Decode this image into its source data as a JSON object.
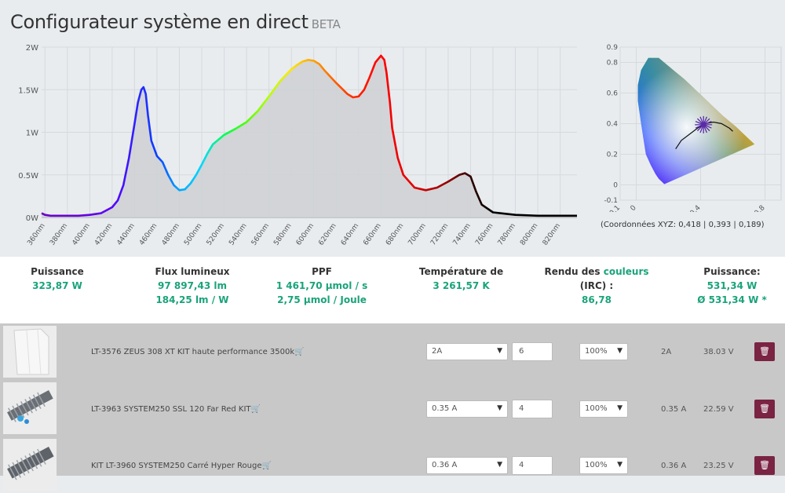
{
  "header": {
    "title": "Configurateur système en direct",
    "badge": "BETA"
  },
  "chart_data": [
    {
      "type": "area",
      "xlabel": "",
      "ylabel": "",
      "x_ticks": [
        "360nm",
        "380nm",
        "400nm",
        "420nm",
        "440nm",
        "460nm",
        "480nm",
        "500nm",
        "520nm",
        "540nm",
        "560nm",
        "580nm",
        "600nm",
        "620nm",
        "640nm",
        "660nm",
        "680nm",
        "700nm",
        "720nm",
        "740nm",
        "760nm",
        "780nm",
        "800nm",
        "820nm"
      ],
      "y_ticks": [
        "0W",
        "0.5W",
        "1W",
        "1.5W",
        "2W"
      ],
      "xlim": [
        357,
        835
      ],
      "ylim": [
        0,
        2
      ],
      "grid": true,
      "series": [
        {
          "x": [
            357,
            360,
            365,
            370,
            380,
            390,
            400,
            410,
            420,
            425,
            430,
            435,
            440,
            443,
            446,
            448,
            450,
            452,
            455,
            460,
            465,
            470,
            475,
            480,
            485,
            490,
            495,
            500,
            505,
            510,
            520,
            530,
            540,
            550,
            560,
            570,
            580,
            585,
            590,
            595,
            600,
            605,
            610,
            620,
            630,
            635,
            640,
            645,
            650,
            655,
            660,
            663,
            665,
            668,
            670,
            675,
            680,
            690,
            700,
            710,
            720,
            730,
            735,
            740,
            745,
            750,
            760,
            780,
            800,
            820,
            835
          ],
          "y": [
            0.05,
            0.03,
            0.02,
            0.02,
            0.02,
            0.02,
            0.03,
            0.05,
            0.12,
            0.2,
            0.38,
            0.7,
            1.1,
            1.35,
            1.5,
            1.53,
            1.45,
            1.2,
            0.9,
            0.72,
            0.65,
            0.5,
            0.38,
            0.32,
            0.33,
            0.4,
            0.5,
            0.62,
            0.75,
            0.86,
            0.97,
            1.04,
            1.12,
            1.25,
            1.42,
            1.6,
            1.74,
            1.79,
            1.83,
            1.85,
            1.84,
            1.8,
            1.72,
            1.58,
            1.45,
            1.41,
            1.42,
            1.5,
            1.65,
            1.82,
            1.9,
            1.85,
            1.7,
            1.35,
            1.05,
            0.7,
            0.5,
            0.35,
            0.32,
            0.35,
            0.42,
            0.5,
            0.52,
            0.48,
            0.3,
            0.15,
            0.06,
            0.03,
            0.02,
            0.02,
            0.02
          ]
        }
      ]
    },
    {
      "type": "scatter",
      "x_ticks": [
        "-0.1",
        "0",
        "0.4",
        "0.8"
      ],
      "y_ticks": [
        "0.9",
        "0.8",
        "0.6",
        "0.4",
        "0.2",
        "0",
        "-0.1"
      ],
      "xlim": [
        -0.1,
        0.9
      ],
      "ylim": [
        -0.1,
        0.9
      ],
      "marker": {
        "x": 0.418,
        "y": 0.393
      }
    }
  ],
  "cie_caption": "(Coordonnées XYZ: 0,418 | 0,393 | 0,189)",
  "stats": [
    {
      "label": "Puissance",
      "values": [
        "323,87 W"
      ]
    },
    {
      "label": "Flux lumineux",
      "values": [
        "97 897,43 lm",
        "184,25 lm / W"
      ]
    },
    {
      "label": "PPF",
      "values": [
        "1 461,70 µmol / s",
        "2,75 µmol / Joule"
      ]
    },
    {
      "label": "Température de",
      "values": [
        "3 261,57 K"
      ]
    },
    {
      "label_a": "Rendu des ",
      "label_b": "couleurs",
      "label_c": "(IRC) :",
      "values": [
        "86,78"
      ]
    },
    {
      "label": "Puissance:",
      "values": [
        "531,34 W",
        "Ø 531,34 W *"
      ]
    }
  ],
  "products": [
    {
      "name": "LT-3576 ZEUS 308 XT KIT haute performance 3500k",
      "current_select": "2A",
      "quantity": "6",
      "dim_select": "100%",
      "current": "2A",
      "voltage": "38.03 V"
    },
    {
      "name": "LT-3963 SYSTEM250 SSL 120 Far Red KIT",
      "current_select": "0.35 A",
      "quantity": "4",
      "dim_select": "100%",
      "current": "0.35 A",
      "voltage": "22.59 V"
    },
    {
      "name": "KIT LT-3960 SYSTEM250 Carré Hyper Rouge",
      "current_select": "0.36 A",
      "quantity": "4",
      "dim_select": "100%",
      "current": "0.36 A",
      "voltage": "23.25 V"
    }
  ],
  "icons": {
    "cart": "cart-icon",
    "delete": "trash-icon",
    "dropdown": "chevron-down-icon"
  }
}
